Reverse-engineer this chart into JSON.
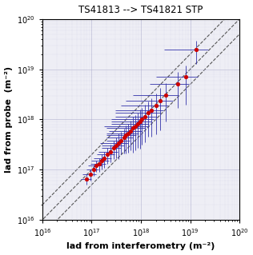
{
  "title": "TS41813 --> TS41821 STP",
  "xlabel": "lad from interferometry (m⁻²)",
  "ylabel": "lad from probe  (m⁻²)",
  "xlim": [
    1e+16,
    1e+20
  ],
  "ylim": [
    1e+16,
    1e+20
  ],
  "x_data": [
    8e+16,
    9.5e+16,
    1.1e+17,
    1.25e+17,
    1.45e+17,
    1.6e+17,
    1.8e+17,
    2.1e+17,
    2.4e+17,
    2.8e+17,
    3.1e+17,
    3.5e+17,
    4e+17,
    4.5e+17,
    5e+17,
    5.5e+17,
    6.2e+17,
    7e+17,
    7.8e+17,
    8.5e+17,
    9.5e+17,
    1.05e+18,
    1.2e+18,
    1.4e+18,
    1.6e+18,
    2e+18,
    2.5e+18,
    3.2e+18,
    5.5e+18,
    8e+18,
    1.3e+19
  ],
  "y_data": [
    6.5e+16,
    8e+16,
    1e+17,
    1.2e+17,
    1.3e+17,
    1.5e+17,
    1.7e+17,
    2e+17,
    2.3e+17,
    2.7e+17,
    3e+17,
    3.4e+17,
    3.8e+17,
    4.3e+17,
    4.8e+17,
    5.2e+17,
    5.9e+17,
    6.7e+17,
    7.4e+17,
    8.2e+17,
    9.1e+17,
    1.02e+18,
    1.15e+18,
    1.35e+18,
    1.55e+18,
    1.9e+18,
    2.4e+18,
    3.1e+18,
    5.2e+18,
    7e+18,
    2.5e+19
  ],
  "xerr_low": [
    2e+16,
    3e+16,
    3e+16,
    4e+16,
    5e+16,
    6e+16,
    7e+16,
    8e+16,
    1e+17,
    1.2e+17,
    1.5e+17,
    2e+17,
    2e+17,
    2.5e+17,
    3e+17,
    3.5e+17,
    4e+17,
    5e+17,
    6e+17,
    6e+17,
    7e+17,
    8e+17,
    9e+17,
    1.1e+18,
    1.3e+18,
    1.6e+18,
    2e+18,
    2.5e+18,
    4e+18,
    6e+18,
    1e+19
  ],
  "xerr_high": [
    2e+16,
    3e+16,
    3e+16,
    4e+16,
    5e+16,
    6e+16,
    7e+16,
    8e+16,
    1e+17,
    1.2e+17,
    1.5e+17,
    2e+17,
    2e+17,
    2.5e+17,
    3e+17,
    3.5e+17,
    4e+17,
    5e+17,
    6e+17,
    6e+17,
    7e+17,
    8e+17,
    9e+17,
    1.1e+18,
    1.3e+18,
    1.6e+18,
    2e+18,
    2.5e+18,
    4e+18,
    6e+18,
    1e+19
  ],
  "yerr_low": [
    1.5e+16,
    2e+16,
    2.5e+16,
    3e+16,
    4e+16,
    5e+16,
    6e+16,
    7e+16,
    9e+16,
    1.1e+17,
    1.3e+17,
    1.8e+17,
    1.8e+17,
    2.2e+17,
    2.7e+17,
    3e+17,
    3.5e+17,
    4.5e+17,
    5e+17,
    5.5e+17,
    6.5e+17,
    7e+17,
    8e+17,
    9e+17,
    1.1e+18,
    1.4e+18,
    1.8e+18,
    2.2e+18,
    3.5e+18,
    5e+18,
    1.2e+19
  ],
  "yerr_high": [
    1.5e+16,
    2e+16,
    2.5e+16,
    3e+16,
    4e+16,
    5e+16,
    6e+16,
    7e+16,
    9e+16,
    1.1e+17,
    1.3e+17,
    1.8e+17,
    1.8e+17,
    2.2e+17,
    2.7e+17,
    3e+17,
    3.5e+17,
    4.5e+17,
    5e+17,
    5.5e+17,
    6.5e+17,
    7e+17,
    8e+17,
    9e+17,
    1.1e+18,
    1.4e+18,
    1.8e+18,
    2.2e+18,
    3.5e+18,
    5e+18,
    1.2e+19
  ],
  "point_color": "#cc0000",
  "errorbar_color": "#3333aa",
  "line_color": "#555555",
  "bg_color": "#eeeef5",
  "grid_color": "#aaaacc",
  "title_fontsize": 8.5,
  "label_fontsize": 8,
  "tick_fontsize": 7
}
